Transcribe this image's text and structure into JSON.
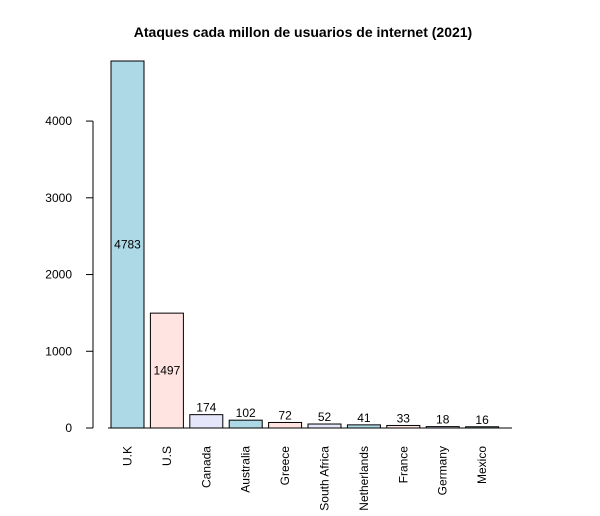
{
  "chart_data": {
    "type": "bar",
    "title": "Ataques cada millon de usuarios de internet (2021)",
    "xlabel": "",
    "ylabel": "",
    "categories": [
      "U.K",
      "U.S",
      "Canada",
      "Australia",
      "Greece",
      "South Africa",
      "Netherlands",
      "France",
      "Germany",
      "Mexico"
    ],
    "values": [
      4783,
      1497,
      174,
      102,
      72,
      52,
      41,
      33,
      18,
      16
    ],
    "data_labels": [
      "4783",
      "1497",
      "174",
      "102",
      "72",
      "52",
      "41",
      "33",
      "18",
      "16"
    ],
    "yticks": [
      0,
      1000,
      2000,
      3000,
      4000
    ],
    "ytick_labels": [
      "0",
      "1000",
      "2000",
      "3000",
      "4000"
    ],
    "ylim": [
      0,
      4783
    ],
    "grid": false,
    "colors": [
      "#add8e6",
      "#ffe4e1",
      "#e6e6fa",
      "#add8e6",
      "#ffe4e1",
      "#e6e6fa",
      "#add8e6",
      "#ffe4e1",
      "#e6e6fa",
      "#add8e6"
    ]
  }
}
